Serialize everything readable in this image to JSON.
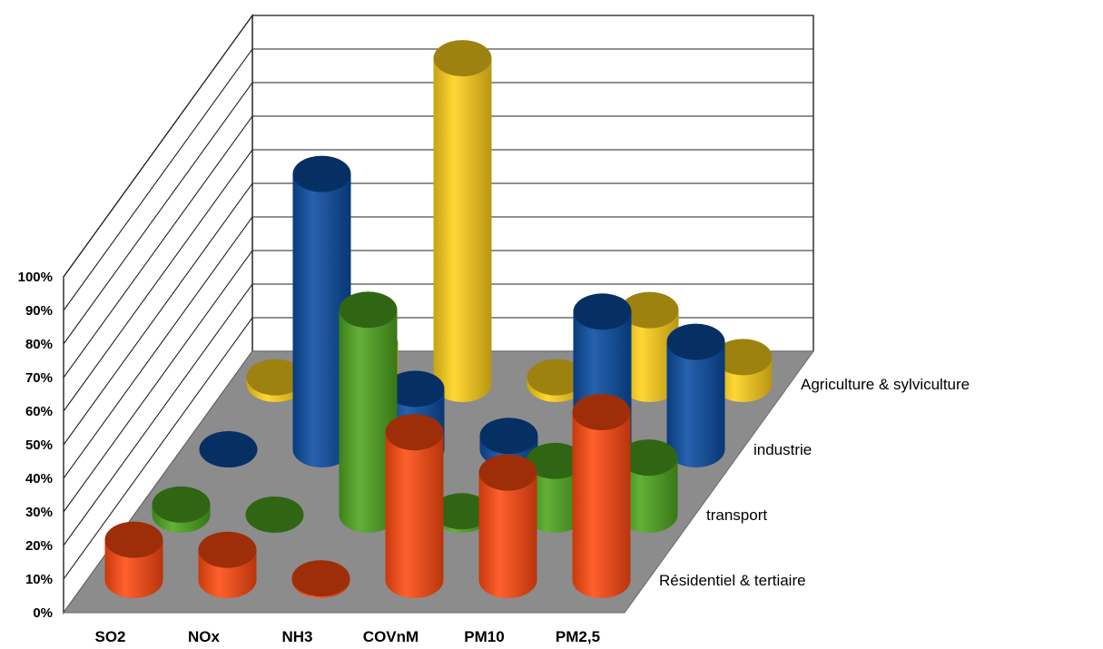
{
  "chart_data": {
    "type": "bar",
    "subtype": "3d-cylinder",
    "title": "",
    "categories": [
      "SO2",
      "NOx",
      "NH3",
      "COVnM",
      "PM10",
      "PM2,5"
    ],
    "ylim": [
      0,
      100
    ],
    "yticks": [
      "0%",
      "10%",
      "20%",
      "30%",
      "40%",
      "50%",
      "60%",
      "70%",
      "80%",
      "90%",
      "100%"
    ],
    "grid": true,
    "series": [
      {
        "name": "Résidentiel & tertiaire",
        "color": "#ff4a10",
        "values": [
          12,
          9,
          0.5,
          44,
          32,
          50
        ]
      },
      {
        "name": "transport",
        "color": "#4ea51e",
        "values": [
          3,
          0,
          61,
          1,
          16,
          17
        ]
      },
      {
        "name": "industrie",
        "color": "#0a4da2",
        "values": [
          0,
          82,
          18,
          4,
          41,
          32
        ]
      },
      {
        "name": "Agriculture & sylviculture",
        "color": "#ffd11a",
        "values": [
          2,
          12,
          97,
          2,
          22,
          8
        ]
      }
    ]
  }
}
